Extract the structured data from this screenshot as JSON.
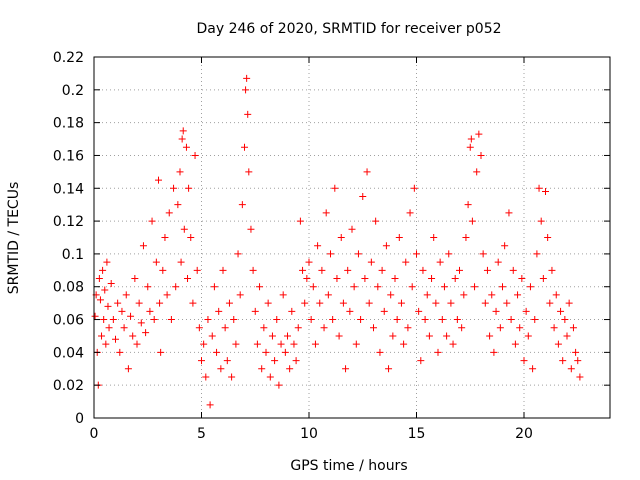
{
  "chart_data": {
    "type": "scatter",
    "title": "Day 246 of 2020, SRMTID for receiver p052",
    "xlabel": "GPS time / hours",
    "ylabel": "SRMTID / TECUs",
    "xlim": [
      0,
      24
    ],
    "ylim": [
      0,
      0.22
    ],
    "xticks": [
      0,
      5,
      10,
      15,
      20
    ],
    "xtick_labels": [
      "0",
      "5",
      "10",
      "15",
      "20"
    ],
    "yticks": [
      0,
      0.02,
      0.04,
      0.06,
      0.08,
      0.1,
      0.12,
      0.14,
      0.16,
      0.18,
      0.2,
      0.22
    ],
    "ytick_labels": [
      "0",
      "0.02",
      "0.04",
      "0.06",
      "0.08",
      "0.1",
      "0.12",
      "0.14",
      "0.16",
      "0.18",
      "0.2",
      "0.22"
    ],
    "grid": true,
    "marker": "+",
    "color": "#ff0000",
    "series": [
      {
        "name": "SRMTID",
        "points": [
          [
            0.05,
            0.062
          ],
          [
            0.1,
            0.075
          ],
          [
            0.15,
            0.04
          ],
          [
            0.2,
            0.02
          ],
          [
            0.25,
            0.085
          ],
          [
            0.3,
            0.072
          ],
          [
            0.35,
            0.05
          ],
          [
            0.4,
            0.09
          ],
          [
            0.45,
            0.06
          ],
          [
            0.5,
            0.078
          ],
          [
            0.55,
            0.045
          ],
          [
            0.6,
            0.095
          ],
          [
            0.65,
            0.068
          ],
          [
            0.7,
            0.055
          ],
          [
            0.8,
            0.082
          ],
          [
            0.9,
            0.06
          ],
          [
            1.0,
            0.048
          ],
          [
            1.1,
            0.07
          ],
          [
            1.2,
            0.04
          ],
          [
            1.3,
            0.065
          ],
          [
            1.4,
            0.055
          ],
          [
            1.5,
            0.075
          ],
          [
            1.6,
            0.03
          ],
          [
            1.7,
            0.062
          ],
          [
            1.8,
            0.05
          ],
          [
            1.9,
            0.085
          ],
          [
            2.0,
            0.045
          ],
          [
            2.1,
            0.07
          ],
          [
            2.2,
            0.058
          ],
          [
            2.3,
            0.105
          ],
          [
            2.4,
            0.052
          ],
          [
            2.5,
            0.08
          ],
          [
            2.6,
            0.065
          ],
          [
            2.7,
            0.12
          ],
          [
            2.8,
            0.06
          ],
          [
            2.9,
            0.095
          ],
          [
            3.0,
            0.145
          ],
          [
            3.05,
            0.07
          ],
          [
            3.1,
            0.04
          ],
          [
            3.2,
            0.09
          ],
          [
            3.3,
            0.11
          ],
          [
            3.4,
            0.075
          ],
          [
            3.5,
            0.125
          ],
          [
            3.6,
            0.06
          ],
          [
            3.7,
            0.14
          ],
          [
            3.8,
            0.08
          ],
          [
            3.9,
            0.13
          ],
          [
            4.0,
            0.15
          ],
          [
            4.05,
            0.095
          ],
          [
            4.1,
            0.17
          ],
          [
            4.15,
            0.175
          ],
          [
            4.2,
            0.115
          ],
          [
            4.3,
            0.165
          ],
          [
            4.35,
            0.085
          ],
          [
            4.4,
            0.14
          ],
          [
            4.5,
            0.11
          ],
          [
            4.6,
            0.07
          ],
          [
            4.7,
            0.16
          ],
          [
            4.8,
            0.09
          ],
          [
            4.9,
            0.055
          ],
          [
            5.0,
            0.035
          ],
          [
            5.1,
            0.045
          ],
          [
            5.2,
            0.025
          ],
          [
            5.3,
            0.06
          ],
          [
            5.4,
            0.008
          ],
          [
            5.5,
            0.05
          ],
          [
            5.6,
            0.08
          ],
          [
            5.7,
            0.04
          ],
          [
            5.8,
            0.065
          ],
          [
            5.9,
            0.03
          ],
          [
            6.0,
            0.09
          ],
          [
            6.1,
            0.055
          ],
          [
            6.2,
            0.035
          ],
          [
            6.3,
            0.07
          ],
          [
            6.4,
            0.025
          ],
          [
            6.5,
            0.06
          ],
          [
            6.6,
            0.045
          ],
          [
            6.7,
            0.1
          ],
          [
            6.8,
            0.075
          ],
          [
            6.9,
            0.13
          ],
          [
            7.0,
            0.165
          ],
          [
            7.05,
            0.2
          ],
          [
            7.1,
            0.207
          ],
          [
            7.15,
            0.185
          ],
          [
            7.2,
            0.15
          ],
          [
            7.3,
            0.115
          ],
          [
            7.4,
            0.09
          ],
          [
            7.5,
            0.065
          ],
          [
            7.6,
            0.045
          ],
          [
            7.7,
            0.08
          ],
          [
            7.8,
            0.03
          ],
          [
            7.9,
            0.055
          ],
          [
            8.0,
            0.04
          ],
          [
            8.1,
            0.07
          ],
          [
            8.2,
            0.025
          ],
          [
            8.3,
            0.05
          ],
          [
            8.4,
            0.035
          ],
          [
            8.5,
            0.06
          ],
          [
            8.6,
            0.02
          ],
          [
            8.7,
            0.045
          ],
          [
            8.8,
            0.075
          ],
          [
            8.9,
            0.04
          ],
          [
            9.0,
            0.05
          ],
          [
            9.1,
            0.03
          ],
          [
            9.2,
            0.065
          ],
          [
            9.3,
            0.045
          ],
          [
            9.4,
            0.035
          ],
          [
            9.5,
            0.055
          ],
          [
            9.6,
            0.12
          ],
          [
            9.7,
            0.09
          ],
          [
            9.8,
            0.07
          ],
          [
            9.9,
            0.085
          ],
          [
            10.0,
            0.095
          ],
          [
            10.1,
            0.06
          ],
          [
            10.2,
            0.08
          ],
          [
            10.3,
            0.045
          ],
          [
            10.4,
            0.105
          ],
          [
            10.5,
            0.07
          ],
          [
            10.6,
            0.09
          ],
          [
            10.7,
            0.055
          ],
          [
            10.8,
            0.125
          ],
          [
            10.9,
            0.075
          ],
          [
            11.0,
            0.1
          ],
          [
            11.1,
            0.06
          ],
          [
            11.2,
            0.14
          ],
          [
            11.3,
            0.085
          ],
          [
            11.4,
            0.05
          ],
          [
            11.5,
            0.11
          ],
          [
            11.6,
            0.07
          ],
          [
            11.7,
            0.03
          ],
          [
            11.8,
            0.09
          ],
          [
            11.9,
            0.065
          ],
          [
            12.0,
            0.115
          ],
          [
            12.1,
            0.08
          ],
          [
            12.2,
            0.045
          ],
          [
            12.3,
            0.1
          ],
          [
            12.4,
            0.06
          ],
          [
            12.5,
            0.135
          ],
          [
            12.6,
            0.085
          ],
          [
            12.7,
            0.15
          ],
          [
            12.8,
            0.07
          ],
          [
            12.9,
            0.095
          ],
          [
            13.0,
            0.055
          ],
          [
            13.1,
            0.12
          ],
          [
            13.2,
            0.08
          ],
          [
            13.3,
            0.04
          ],
          [
            13.4,
            0.09
          ],
          [
            13.5,
            0.065
          ],
          [
            13.6,
            0.105
          ],
          [
            13.7,
            0.03
          ],
          [
            13.8,
            0.075
          ],
          [
            13.9,
            0.05
          ],
          [
            14.0,
            0.085
          ],
          [
            14.1,
            0.06
          ],
          [
            14.2,
            0.11
          ],
          [
            14.3,
            0.07
          ],
          [
            14.4,
            0.045
          ],
          [
            14.5,
            0.095
          ],
          [
            14.6,
            0.055
          ],
          [
            14.7,
            0.125
          ],
          [
            14.8,
            0.08
          ],
          [
            14.9,
            0.14
          ],
          [
            15.0,
            0.1
          ],
          [
            15.1,
            0.065
          ],
          [
            15.2,
            0.035
          ],
          [
            15.3,
            0.09
          ],
          [
            15.4,
            0.06
          ],
          [
            15.5,
            0.075
          ],
          [
            15.6,
            0.05
          ],
          [
            15.7,
            0.085
          ],
          [
            15.8,
            0.11
          ],
          [
            15.9,
            0.07
          ],
          [
            16.0,
            0.04
          ],
          [
            16.1,
            0.095
          ],
          [
            16.2,
            0.06
          ],
          [
            16.3,
            0.08
          ],
          [
            16.4,
            0.05
          ],
          [
            16.5,
            0.1
          ],
          [
            16.6,
            0.07
          ],
          [
            16.7,
            0.045
          ],
          [
            16.8,
            0.085
          ],
          [
            16.9,
            0.06
          ],
          [
            17.0,
            0.09
          ],
          [
            17.1,
            0.055
          ],
          [
            17.2,
            0.075
          ],
          [
            17.3,
            0.11
          ],
          [
            17.4,
            0.13
          ],
          [
            17.5,
            0.165
          ],
          [
            17.55,
            0.17
          ],
          [
            17.6,
            0.12
          ],
          [
            17.7,
            0.08
          ],
          [
            17.8,
            0.15
          ],
          [
            17.9,
            0.173
          ],
          [
            18.0,
            0.16
          ],
          [
            18.1,
            0.1
          ],
          [
            18.2,
            0.07
          ],
          [
            18.3,
            0.09
          ],
          [
            18.4,
            0.05
          ],
          [
            18.5,
            0.075
          ],
          [
            18.6,
            0.04
          ],
          [
            18.7,
            0.065
          ],
          [
            18.8,
            0.095
          ],
          [
            18.9,
            0.055
          ],
          [
            19.0,
            0.08
          ],
          [
            19.1,
            0.105
          ],
          [
            19.2,
            0.07
          ],
          [
            19.3,
            0.125
          ],
          [
            19.4,
            0.06
          ],
          [
            19.5,
            0.09
          ],
          [
            19.6,
            0.045
          ],
          [
            19.7,
            0.075
          ],
          [
            19.8,
            0.055
          ],
          [
            19.9,
            0.085
          ],
          [
            20.0,
            0.035
          ],
          [
            20.1,
            0.065
          ],
          [
            20.2,
            0.05
          ],
          [
            20.3,
            0.08
          ],
          [
            20.4,
            0.03
          ],
          [
            20.5,
            0.06
          ],
          [
            20.6,
            0.1
          ],
          [
            20.7,
            0.14
          ],
          [
            20.8,
            0.12
          ],
          [
            20.9,
            0.085
          ],
          [
            21.0,
            0.138
          ],
          [
            21.1,
            0.11
          ],
          [
            21.2,
            0.07
          ],
          [
            21.3,
            0.09
          ],
          [
            21.4,
            0.055
          ],
          [
            21.5,
            0.075
          ],
          [
            21.6,
            0.045
          ],
          [
            21.7,
            0.065
          ],
          [
            21.8,
            0.035
          ],
          [
            21.9,
            0.06
          ],
          [
            22.0,
            0.05
          ],
          [
            22.1,
            0.07
          ],
          [
            22.2,
            0.03
          ],
          [
            22.3,
            0.055
          ],
          [
            22.4,
            0.04
          ],
          [
            22.5,
            0.035
          ],
          [
            22.6,
            0.025
          ]
        ]
      }
    ]
  }
}
